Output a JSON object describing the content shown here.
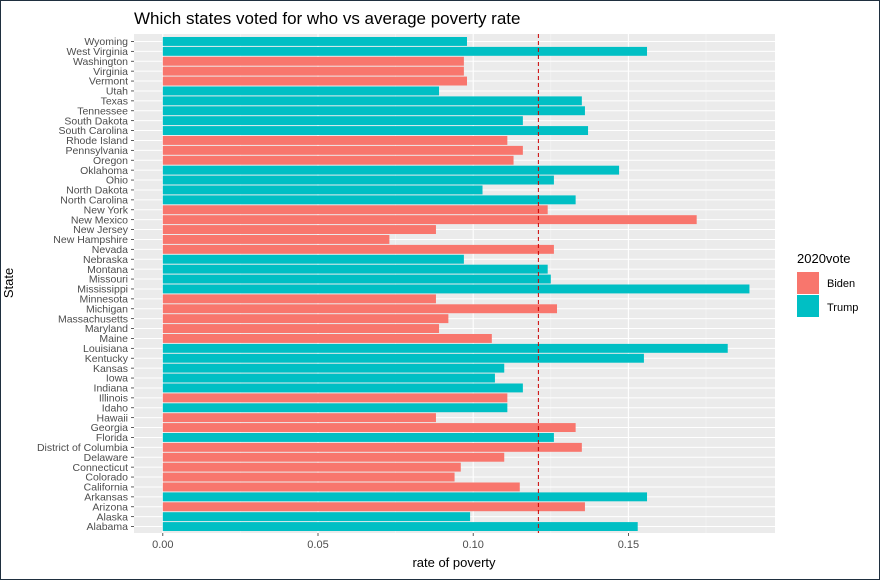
{
  "chart_data": {
    "type": "bar",
    "orientation": "horizontal",
    "title": "Which states voted for who vs average poverty rate",
    "xlabel": "rate of poverty",
    "ylabel": "State",
    "xlim": [
      0,
      0.198
    ],
    "xticks": [
      0.0,
      0.05,
      0.1,
      0.15
    ],
    "xtick_labels": [
      "0.00",
      "0.05",
      "0.10",
      "0.15"
    ],
    "reference_line": {
      "value": 0.121,
      "style": "dashed",
      "color": "#cc0000"
    },
    "grid": true,
    "legend": {
      "title": "2020vote",
      "position": "right",
      "entries": [
        {
          "label": "Biden",
          "color": "#F8766D"
        },
        {
          "label": "Trump",
          "color": "#00BFC4"
        }
      ]
    },
    "colors": {
      "Biden": "#F8766D",
      "Trump": "#00BFC4"
    },
    "categories": [
      "Alabama",
      "Alaska",
      "Arizona",
      "Arkansas",
      "California",
      "Colorado",
      "Connecticut",
      "Delaware",
      "District of Columbia",
      "Florida",
      "Georgia",
      "Hawaii",
      "Idaho",
      "Illinois",
      "Indiana",
      "Iowa",
      "Kansas",
      "Kentucky",
      "Louisiana",
      "Maine",
      "Maryland",
      "Massachusetts",
      "Michigan",
      "Minnesota",
      "Mississippi",
      "Missouri",
      "Montana",
      "Nebraska",
      "Nevada",
      "New Hampshire",
      "New Jersey",
      "New Mexico",
      "New York",
      "North Carolina",
      "North Dakota",
      "Ohio",
      "Oklahoma",
      "Oregon",
      "Pennsylvania",
      "Rhode Island",
      "South Carolina",
      "South Dakota",
      "Tennessee",
      "Texas",
      "Utah",
      "Vermont",
      "Virginia",
      "Washington",
      "West Virginia",
      "Wyoming"
    ],
    "values": [
      0.153,
      0.099,
      0.136,
      0.156,
      0.115,
      0.094,
      0.096,
      0.11,
      0.135,
      0.126,
      0.133,
      0.088,
      0.111,
      0.111,
      0.116,
      0.107,
      0.11,
      0.155,
      0.182,
      0.106,
      0.089,
      0.092,
      0.127,
      0.088,
      0.189,
      0.125,
      0.124,
      0.097,
      0.126,
      0.073,
      0.088,
      0.172,
      0.124,
      0.133,
      0.103,
      0.126,
      0.147,
      0.113,
      0.116,
      0.111,
      0.137,
      0.116,
      0.136,
      0.135,
      0.089,
      0.098,
      0.097,
      0.097,
      0.156,
      0.098
    ],
    "vote": [
      "Trump",
      "Trump",
      "Biden",
      "Trump",
      "Biden",
      "Biden",
      "Biden",
      "Biden",
      "Biden",
      "Trump",
      "Biden",
      "Biden",
      "Trump",
      "Biden",
      "Trump",
      "Trump",
      "Trump",
      "Trump",
      "Trump",
      "Biden",
      "Biden",
      "Biden",
      "Biden",
      "Biden",
      "Trump",
      "Trump",
      "Trump",
      "Trump",
      "Biden",
      "Biden",
      "Biden",
      "Biden",
      "Biden",
      "Trump",
      "Trump",
      "Trump",
      "Trump",
      "Biden",
      "Biden",
      "Biden",
      "Trump",
      "Trump",
      "Trump",
      "Trump",
      "Trump",
      "Biden",
      "Biden",
      "Biden",
      "Trump",
      "Trump"
    ]
  }
}
